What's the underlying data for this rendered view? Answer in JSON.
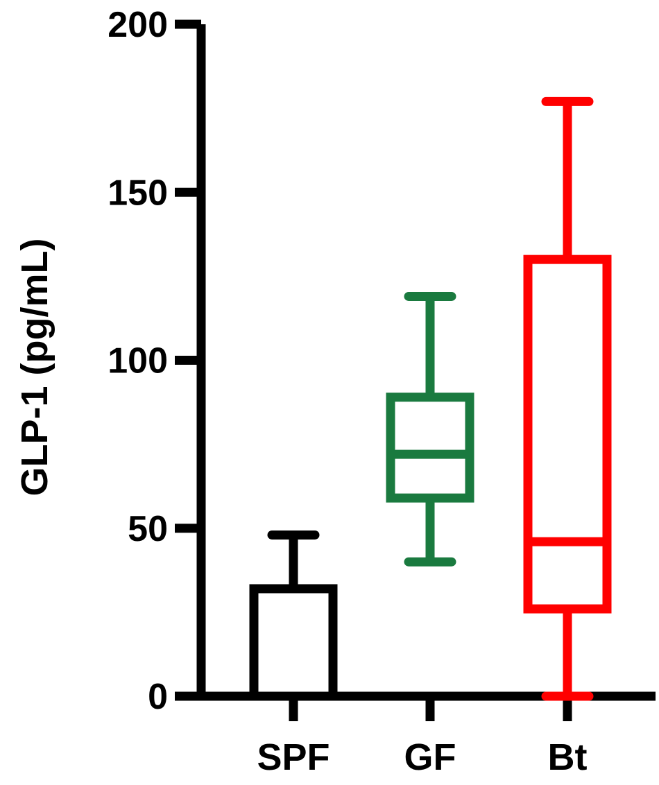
{
  "chart_data": {
    "type": "box",
    "title": "",
    "xlabel": "",
    "ylabel": "GLP-1 (pg/mL)",
    "ylim": [
      0,
      200
    ],
    "yticks": [
      0,
      50,
      100,
      150,
      200
    ],
    "grid": false,
    "categories": [
      "SPF",
      "GF",
      "Bt"
    ],
    "series": [
      {
        "category": "SPF",
        "color": "#000000",
        "min": 0,
        "q1": 0,
        "median": 0,
        "q3": 32,
        "max": 48
      },
      {
        "category": "GF",
        "color": "#1a7a3f",
        "min": 40,
        "q1": 59,
        "median": 72,
        "q3": 89,
        "max": 119
      },
      {
        "category": "Bt",
        "color": "#ff0000",
        "min": 0,
        "q1": 26,
        "median": 46,
        "q3": 130,
        "max": 177
      }
    ]
  }
}
